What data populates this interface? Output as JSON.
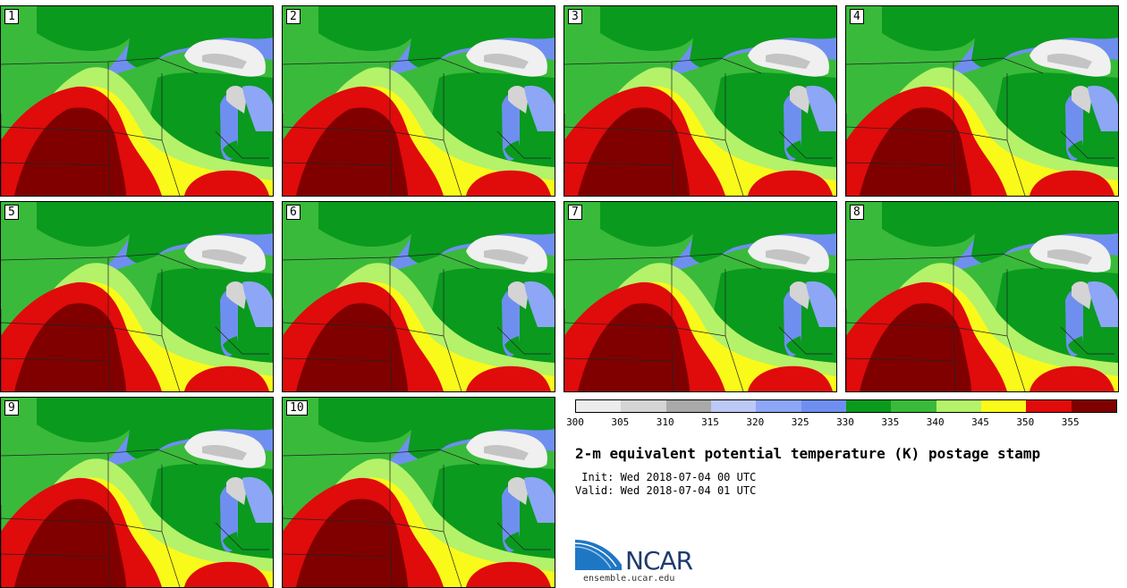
{
  "panels": [
    {
      "label": "1"
    },
    {
      "label": "2"
    },
    {
      "label": "3"
    },
    {
      "label": "4"
    },
    {
      "label": "5"
    },
    {
      "label": "6"
    },
    {
      "label": "7"
    },
    {
      "label": "8"
    },
    {
      "label": "9"
    },
    {
      "label": "10"
    }
  ],
  "colorbar": {
    "colors": [
      "#ececec",
      "#d4d4d4",
      "#a9a9a9",
      "#bcc9f6",
      "#8da6f6",
      "#6f8ff0",
      "#0a9a1e",
      "#3aba3a",
      "#b4f26a",
      "#fafa1a",
      "#e00b0b",
      "#800000"
    ],
    "ticks": [
      "300",
      "305",
      "310",
      "315",
      "320",
      "325",
      "330",
      "335",
      "340",
      "345",
      "350",
      "355"
    ]
  },
  "title": "2-m equivalent potential temperature (K) postage stamp",
  "init": " Init: Wed 2018-07-04 00 UTC",
  "valid": "Valid: Wed 2018-07-04 01 UTC",
  "logo": {
    "text": "NCAR",
    "url": "ensemble.ucar.edu"
  }
}
